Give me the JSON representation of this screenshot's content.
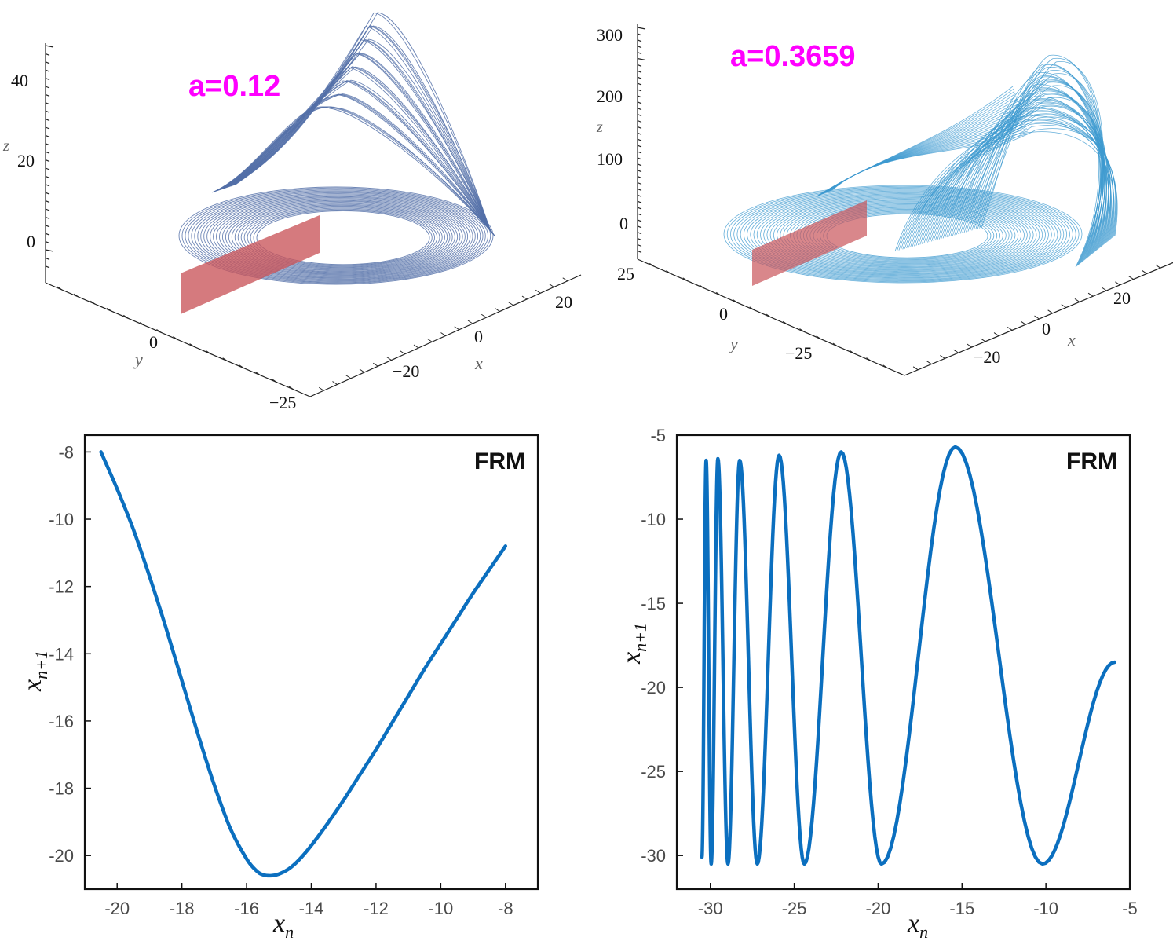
{
  "colors": {
    "trajectory_a": "#5470a8",
    "trajectory_b": "#3d9ad0",
    "plane": "#c9545a",
    "annotation": "#ff00ff",
    "map_line": "#0b6fbf",
    "axis": "#222222",
    "tick_label_2d": "#4a4a4a"
  },
  "chart_data": [
    {
      "id": "attractor-a",
      "type": "line3d",
      "annotation": "a=0.12",
      "zlabel": "z",
      "xlabel": "x",
      "ylabel": "y",
      "z_ticks": [
        "40",
        "20",
        "0"
      ],
      "y_ticks": [
        "0",
        "−25"
      ],
      "x_ticks": [
        "20",
        "0",
        "−20"
      ],
      "zlim": [
        -5,
        48
      ],
      "xlim": [
        -25,
        25
      ],
      "ylim": [
        -25,
        25
      ],
      "poincare_section": "plane"
    },
    {
      "id": "attractor-b",
      "type": "line3d",
      "annotation": "a=0.3659",
      "zlabel": "z",
      "xlabel": "x",
      "ylabel": "y",
      "z_ticks": [
        "300",
        "200",
        "100",
        "0"
      ],
      "y_ticks": [
        "25",
        "0",
        "−25"
      ],
      "x_ticks": [
        "20",
        "0",
        "−20"
      ],
      "zlim": [
        -30,
        310
      ],
      "xlim": [
        -30,
        30
      ],
      "ylim": [
        -30,
        30
      ],
      "poincare_section": "plane"
    },
    {
      "id": "frm-a",
      "type": "line",
      "title": "FRM",
      "xlabel": "x",
      "xlabel_sub": "n",
      "ylabel": "x",
      "ylabel_sub": "n+1",
      "xlim": [
        -21,
        -7
      ],
      "ylim": [
        -21,
        -7.5
      ],
      "x_ticks": [
        -20,
        -18,
        -16,
        -14,
        -12,
        -10,
        -8
      ],
      "y_ticks": [
        -8,
        -10,
        -12,
        -14,
        -16,
        -18,
        -20
      ],
      "x": [
        -20.5,
        -20.0,
        -19.5,
        -19.0,
        -18.5,
        -18.0,
        -17.5,
        -17.0,
        -16.5,
        -16.0,
        -15.7,
        -15.5,
        -15.25,
        -15.0,
        -14.7,
        -14.4,
        -14.0,
        -13.5,
        -13.0,
        -12.5,
        -12.0,
        -11.5,
        -11.0,
        -10.5,
        -10.0,
        -9.5,
        -9.0,
        -8.5,
        -8.0
      ],
      "y": [
        -8.0,
        -9.1,
        -10.3,
        -11.7,
        -13.2,
        -14.8,
        -16.4,
        -17.9,
        -19.2,
        -20.1,
        -20.45,
        -20.57,
        -20.6,
        -20.55,
        -20.4,
        -20.15,
        -19.7,
        -19.05,
        -18.35,
        -17.6,
        -16.85,
        -16.05,
        -15.25,
        -14.45,
        -13.7,
        -12.95,
        -12.2,
        -11.5,
        -10.8
      ]
    },
    {
      "id": "frm-b",
      "type": "line",
      "title": "FRM",
      "xlabel": "x",
      "xlabel_sub": "n",
      "ylabel": "x",
      "ylabel_sub": "n+1",
      "xlim": [
        -32,
        -5
      ],
      "ylim": [
        -32,
        -5
      ],
      "x_ticks": [
        -30,
        -25,
        -20,
        -15,
        -10,
        -5
      ],
      "y_ticks": [
        -5,
        -10,
        -15,
        -20,
        -25,
        -30
      ],
      "extrema_x": [
        -30.5,
        -30.25,
        -29.95,
        -29.55,
        -28.95,
        -28.25,
        -27.2,
        -25.9,
        -24.4,
        -22.2,
        -19.8,
        -15.4,
        -10.2,
        -5.9
      ],
      "extrema_y": [
        -30.1,
        -6.5,
        -30.5,
        -6.4,
        -30.5,
        -6.5,
        -30.5,
        -6.2,
        -30.5,
        -6.0,
        -30.5,
        -5.7,
        -30.5,
        -18.5
      ]
    }
  ]
}
